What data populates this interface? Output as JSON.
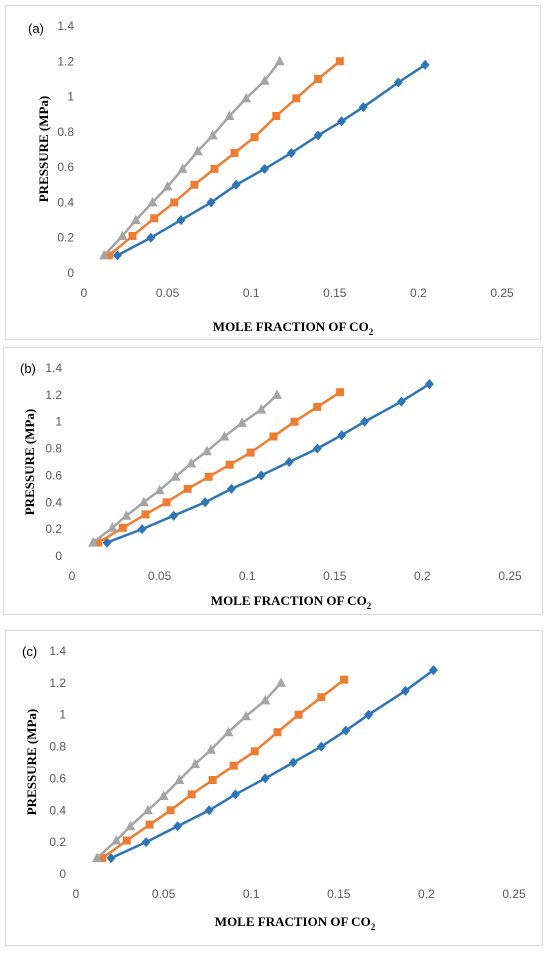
{
  "figure": {
    "colors": {
      "series1": "#2E75B6",
      "series2": "#ED7D31",
      "series3": "#A5A5A5",
      "tick_text": "#595959",
      "border": "#D9D9D9"
    }
  },
  "chart_data": [
    {
      "type": "line",
      "panel_label": "(a)",
      "xlabel_main": "MOLE FRACTION OF CO",
      "xlabel_sub": "2",
      "ylabel": "PRESSURE (MPa)",
      "xlim": [
        0,
        0.25
      ],
      "ylim": [
        0,
        1.4
      ],
      "xticks": [
        "0",
        "0.05",
        "0.1",
        "0.15",
        "0.2",
        "0.25"
      ],
      "yticks": [
        "0",
        "0.2",
        "0.4",
        "0.6",
        "0.8",
        "1",
        "1.2",
        "1.4"
      ],
      "grid": false,
      "legend": "none",
      "series": [
        {
          "marker": "diamond",
          "color": "#2E75B6",
          "x": [
            0.02,
            0.04,
            0.058,
            0.076,
            0.091,
            0.108,
            0.124,
            0.14,
            0.154,
            0.167,
            0.188,
            0.204
          ],
          "y": [
            0.1,
            0.2,
            0.3,
            0.4,
            0.5,
            0.59,
            0.68,
            0.78,
            0.86,
            0.94,
            1.08,
            1.18
          ]
        },
        {
          "marker": "square",
          "color": "#ED7D31",
          "x": [
            0.015,
            0.029,
            0.042,
            0.054,
            0.066,
            0.078,
            0.09,
            0.102,
            0.115,
            0.127,
            0.14,
            0.153
          ],
          "y": [
            0.1,
            0.21,
            0.31,
            0.4,
            0.5,
            0.59,
            0.68,
            0.77,
            0.89,
            0.99,
            1.1,
            1.2
          ]
        },
        {
          "marker": "triangle",
          "color": "#A5A5A5",
          "x": [
            0.012,
            0.023,
            0.031,
            0.041,
            0.05,
            0.059,
            0.068,
            0.077,
            0.087,
            0.097,
            0.108,
            0.117
          ],
          "y": [
            0.1,
            0.21,
            0.3,
            0.4,
            0.49,
            0.59,
            0.69,
            0.78,
            0.89,
            0.99,
            1.09,
            1.2
          ]
        }
      ]
    },
    {
      "type": "line",
      "panel_label": "(b)",
      "xlabel_main": "MOLE FRACTION OF CO",
      "xlabel_sub": "2",
      "ylabel": "PRESSURE (MPa)",
      "xlim": [
        0,
        0.25
      ],
      "ylim": [
        0,
        1.4
      ],
      "xticks": [
        "0",
        "0.05",
        "0.1",
        "0.15",
        "0.2",
        "0.25"
      ],
      "yticks": [
        "0",
        "0.2",
        "0.4",
        "0.6",
        "0.8",
        "1",
        "1.2",
        "1.4"
      ],
      "grid": false,
      "legend": "none",
      "series": [
        {
          "marker": "diamond",
          "color": "#2E75B6",
          "x": [
            0.02,
            0.04,
            0.058,
            0.076,
            0.091,
            0.108,
            0.124,
            0.14,
            0.154,
            0.167,
            0.188,
            0.204
          ],
          "y": [
            0.1,
            0.2,
            0.3,
            0.4,
            0.5,
            0.6,
            0.7,
            0.8,
            0.9,
            1.0,
            1.15,
            1.28
          ]
        },
        {
          "marker": "square",
          "color": "#ED7D31",
          "x": [
            0.015,
            0.029,
            0.042,
            0.054,
            0.066,
            0.078,
            0.09,
            0.102,
            0.115,
            0.127,
            0.14,
            0.153
          ],
          "y": [
            0.1,
            0.21,
            0.31,
            0.4,
            0.5,
            0.59,
            0.68,
            0.77,
            0.89,
            1.0,
            1.11,
            1.22
          ]
        },
        {
          "marker": "triangle",
          "color": "#A5A5A5",
          "x": [
            0.012,
            0.023,
            0.031,
            0.041,
            0.05,
            0.059,
            0.068,
            0.077,
            0.087,
            0.097,
            0.108,
            0.117
          ],
          "y": [
            0.1,
            0.21,
            0.3,
            0.4,
            0.49,
            0.59,
            0.69,
            0.78,
            0.89,
            0.99,
            1.09,
            1.2
          ]
        }
      ]
    },
    {
      "type": "line",
      "panel_label": "(c)",
      "xlabel_main": "MOLE FRACTION OF CO",
      "xlabel_sub": "2",
      "ylabel": "PRESSURE (MPa)",
      "xlim": [
        0,
        0.25
      ],
      "ylim": [
        0,
        1.4
      ],
      "xticks": [
        "0",
        "0.05",
        "0.1",
        "0.15",
        "0.2",
        "0.25"
      ],
      "yticks": [
        "0",
        "0.2",
        "0.4",
        "0.6",
        "0.8",
        "1",
        "1.2",
        "1.4"
      ],
      "grid": false,
      "legend": "none",
      "series": [
        {
          "marker": "diamond",
          "color": "#2E75B6",
          "x": [
            0.02,
            0.04,
            0.058,
            0.076,
            0.091,
            0.108,
            0.124,
            0.14,
            0.154,
            0.167,
            0.188,
            0.204
          ],
          "y": [
            0.1,
            0.2,
            0.3,
            0.4,
            0.5,
            0.6,
            0.7,
            0.8,
            0.9,
            1.0,
            1.15,
            1.28
          ]
        },
        {
          "marker": "square",
          "color": "#ED7D31",
          "x": [
            0.015,
            0.029,
            0.042,
            0.054,
            0.066,
            0.078,
            0.09,
            0.102,
            0.115,
            0.127,
            0.14,
            0.153
          ],
          "y": [
            0.1,
            0.21,
            0.31,
            0.4,
            0.5,
            0.59,
            0.68,
            0.77,
            0.89,
            1.0,
            1.11,
            1.22
          ]
        },
        {
          "marker": "triangle",
          "color": "#A5A5A5",
          "x": [
            0.012,
            0.023,
            0.031,
            0.041,
            0.05,
            0.059,
            0.068,
            0.077,
            0.087,
            0.097,
            0.108,
            0.117
          ],
          "y": [
            0.1,
            0.21,
            0.3,
            0.4,
            0.49,
            0.59,
            0.69,
            0.78,
            0.89,
            0.99,
            1.09,
            1.2
          ]
        }
      ]
    }
  ]
}
